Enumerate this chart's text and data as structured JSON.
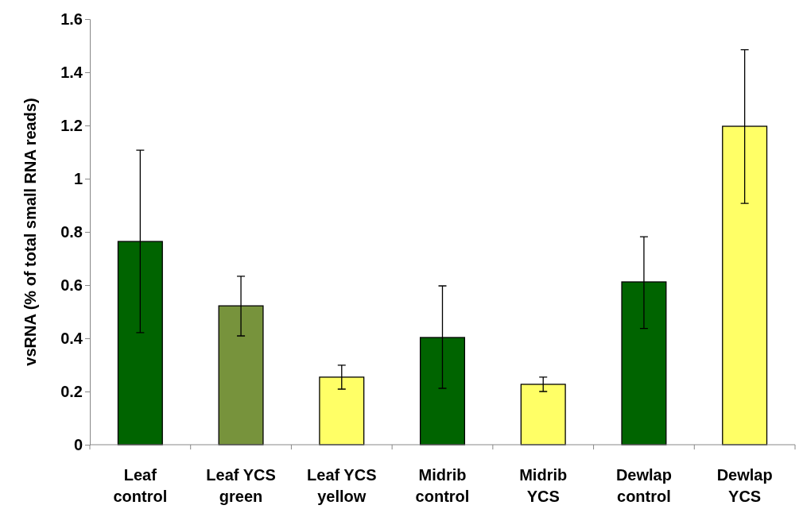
{
  "chart_data": {
    "type": "bar",
    "ylabel": "vsRNA (% of total small RNA reads)",
    "categories": [
      "Leaf control",
      "Leaf YCS green",
      "Leaf YCS yellow",
      "Midrib control",
      "Midrib YCS",
      "Dewlap control",
      "Dewlap YCS"
    ],
    "values": [
      0.764,
      0.522,
      0.254,
      0.403,
      0.227,
      0.612,
      1.197
    ],
    "colors": [
      "#006400",
      "#77933c",
      "#ffff66",
      "#006400",
      "#ffff66",
      "#006400",
      "#ffff66"
    ],
    "errors": [
      [
        0.421,
        1.107
      ],
      [
        0.409,
        0.633
      ],
      [
        0.209,
        0.299
      ],
      [
        0.212,
        0.597
      ],
      [
        0.2,
        0.254
      ],
      [
        0.437,
        0.782
      ],
      [
        0.907,
        1.485
      ]
    ],
    "ylim": [
      0,
      1.6
    ],
    "yticks": [
      0,
      0.2,
      0.4,
      0.6,
      0.8,
      1,
      1.2,
      1.4,
      1.6
    ],
    "grid": false
  }
}
